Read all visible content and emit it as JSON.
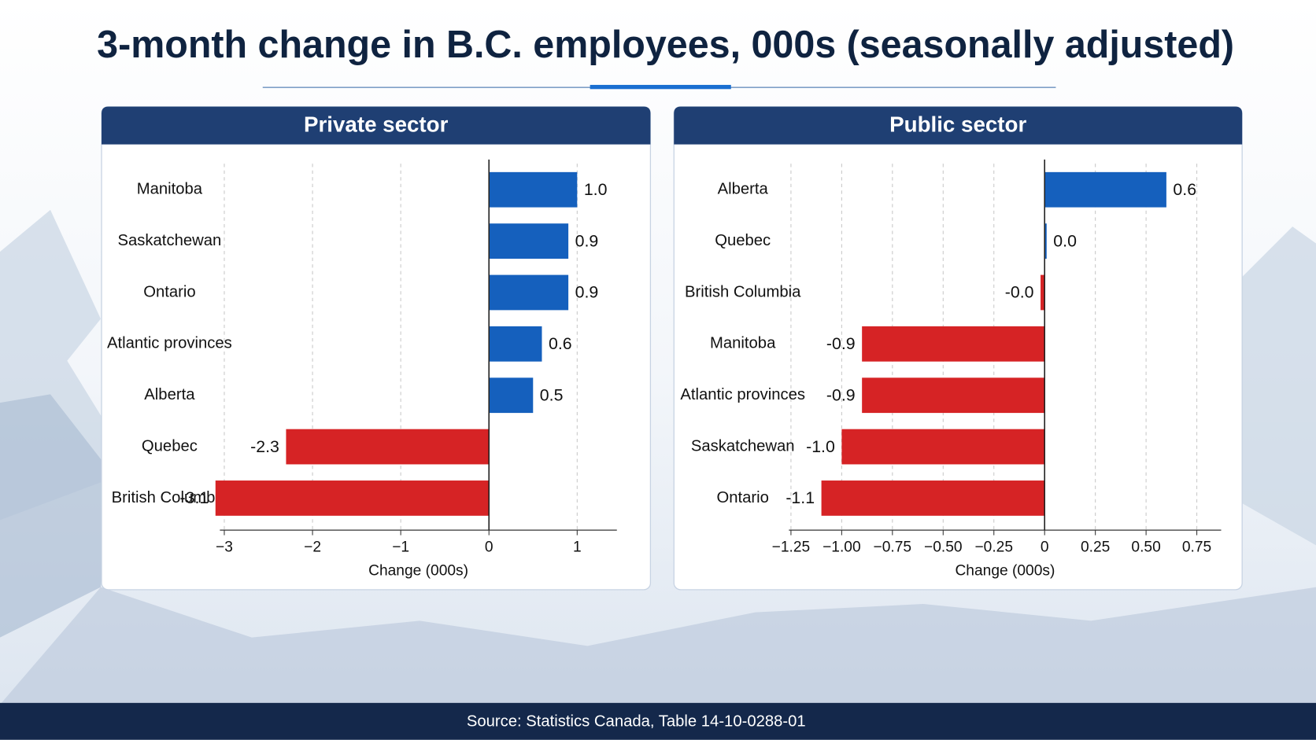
{
  "title": "3-month change in B.C. employees, 000s (seasonally adjusted)",
  "source": "Source: Statistics Canada, Table 14-10-0288-01",
  "chart_data": [
    {
      "type": "bar",
      "orientation": "horizontal",
      "title": "Private sector",
      "categories": [
        "Manitoba",
        "Saskatchewan",
        "Ontario",
        "Atlantic provinces",
        "Alberta",
        "Quebec",
        "British Columbia"
      ],
      "values": [
        1.0,
        0.9,
        0.9,
        0.6,
        0.5,
        -2.3,
        -3.1
      ],
      "value_labels": [
        "1.0",
        "0.9",
        "0.9",
        "0.6",
        "0.5",
        "-2.3",
        "-3.1"
      ],
      "xlabel": "Change (000s)",
      "xlim": [
        -3.05,
        1.45
      ],
      "xticks": [
        {
          "value": -3,
          "label": "−3"
        },
        {
          "value": -2,
          "label": "−2"
        },
        {
          "value": -1,
          "label": "−1"
        },
        0,
        1
      ],
      "color_positive": "#1560bd",
      "color_negative": "#d62325",
      "grid": true
    },
    {
      "type": "bar",
      "orientation": "horizontal",
      "title": "Public sector",
      "categories": [
        "Alberta",
        "Quebec",
        "British Columbia",
        "Manitoba",
        "Atlantic provinces",
        "Saskatchewan",
        "Ontario"
      ],
      "values": [
        0.6,
        0.01,
        -0.02,
        -0.9,
        -0.9,
        -1.0,
        -1.1
      ],
      "value_labels": [
        "0.6",
        "0.0",
        "-0.0",
        "-0.9",
        "-0.9",
        "-1.0",
        "-1.1"
      ],
      "xlabel": "Change (000s)",
      "xlim": [
        -1.26,
        0.87
      ],
      "xticks": [
        {
          "value": -1.25,
          "label": "−1.25"
        },
        {
          "value": -1,
          "label": "−1.00"
        },
        {
          "value": -0.75,
          "label": "−0.75"
        },
        {
          "value": -0.5,
          "label": "−0.50"
        },
        {
          "value": -0.25,
          "label": "−0.25"
        },
        0,
        {
          "value": 0.25,
          "label": "0.25"
        },
        {
          "value": 0.5,
          "label": "0.50"
        },
        {
          "value": 0.75,
          "label": "0.75"
        }
      ],
      "color_positive": "#1560bd",
      "color_negative": "#d62325",
      "grid": true
    }
  ]
}
